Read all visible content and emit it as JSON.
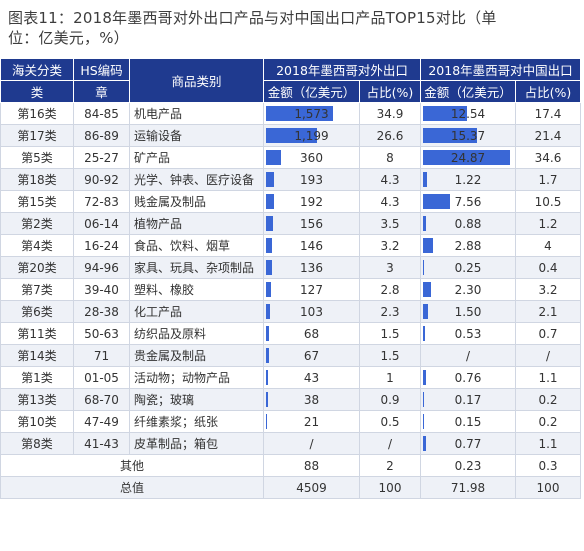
{
  "title_line1": "图表11：2018年墨西哥对外出口产品与对中国出口产品TOP15对比（单",
  "title_line2": "位：亿美元，%）",
  "headers": {
    "col1": "海关分类",
    "col1b": "类",
    "col2": "HS编码",
    "col2b": "章",
    "col3": "商品类别",
    "group1": "2018年墨西哥对外出口",
    "group2": "2018年墨西哥对中国出口",
    "amount": "金额（亿美元）",
    "share": "占比(%)"
  },
  "rows": [
    {
      "cls": "第16类",
      "hs": "84-85",
      "cat": "机电产品",
      "world_amount": "1,573",
      "world_value": 1573,
      "world_share": "34.9",
      "china_amount": "12.54",
      "china_value": 12.54,
      "china_share": "17.4"
    },
    {
      "cls": "第17类",
      "hs": "86-89",
      "cat": "运输设备",
      "world_amount": "1,199",
      "world_value": 1199,
      "world_share": "26.6",
      "china_amount": "15.37",
      "china_value": 15.37,
      "china_share": "21.4"
    },
    {
      "cls": "第5类",
      "hs": "25-27",
      "cat": "矿产品",
      "world_amount": "360",
      "world_value": 360,
      "world_share": "8",
      "china_amount": "24.87",
      "china_value": 24.87,
      "china_share": "34.6"
    },
    {
      "cls": "第18类",
      "hs": "90-92",
      "cat": "光学、钟表、医疗设备",
      "world_amount": "193",
      "world_value": 193,
      "world_share": "4.3",
      "china_amount": "1.22",
      "china_value": 1.22,
      "china_share": "1.7"
    },
    {
      "cls": "第15类",
      "hs": "72-83",
      "cat": "贱金属及制品",
      "world_amount": "192",
      "world_value": 192,
      "world_share": "4.3",
      "china_amount": "7.56",
      "china_value": 7.56,
      "china_share": "10.5"
    },
    {
      "cls": "第2类",
      "hs": "06-14",
      "cat": "植物产品",
      "world_amount": "156",
      "world_value": 156,
      "world_share": "3.5",
      "china_amount": "0.88",
      "china_value": 0.88,
      "china_share": "1.2"
    },
    {
      "cls": "第4类",
      "hs": "16-24",
      "cat": "食品、饮料、烟草",
      "world_amount": "146",
      "world_value": 146,
      "world_share": "3.2",
      "china_amount": "2.88",
      "china_value": 2.88,
      "china_share": "4"
    },
    {
      "cls": "第20类",
      "hs": "94-96",
      "cat": "家具、玩具、杂项制品",
      "world_amount": "136",
      "world_value": 136,
      "world_share": "3",
      "china_amount": "0.25",
      "china_value": 0.25,
      "china_share": "0.4"
    },
    {
      "cls": "第7类",
      "hs": "39-40",
      "cat": "塑料、橡胶",
      "world_amount": "127",
      "world_value": 127,
      "world_share": "2.8",
      "china_amount": "2.30",
      "china_value": 2.3,
      "china_share": "3.2"
    },
    {
      "cls": "第6类",
      "hs": "28-38",
      "cat": "化工产品",
      "world_amount": "103",
      "world_value": 103,
      "world_share": "2.3",
      "china_amount": "1.50",
      "china_value": 1.5,
      "china_share": "2.1"
    },
    {
      "cls": "第11类",
      "hs": "50-63",
      "cat": "纺织品及原料",
      "world_amount": "68",
      "world_value": 68,
      "world_share": "1.5",
      "china_amount": "0.53",
      "china_value": 0.53,
      "china_share": "0.7"
    },
    {
      "cls": "第14类",
      "hs": "71",
      "cat": "贵金属及制品",
      "world_amount": "67",
      "world_value": 67,
      "world_share": "1.5",
      "china_amount": "/",
      "china_value": 0,
      "china_share": "/"
    },
    {
      "cls": "第1类",
      "hs": "01-05",
      "cat": "活动物；动物产品",
      "world_amount": "43",
      "world_value": 43,
      "world_share": "1",
      "china_amount": "0.76",
      "china_value": 0.76,
      "china_share": "1.1"
    },
    {
      "cls": "第13类",
      "hs": "68-70",
      "cat": "陶瓷；玻璃",
      "world_amount": "38",
      "world_value": 38,
      "world_share": "0.9",
      "china_amount": "0.17",
      "china_value": 0.17,
      "china_share": "0.2"
    },
    {
      "cls": "第10类",
      "hs": "47-49",
      "cat": "纤维素浆；纸张",
      "world_amount": "21",
      "world_value": 21,
      "world_share": "0.5",
      "china_amount": "0.15",
      "china_value": 0.15,
      "china_share": "0.2"
    },
    {
      "cls": "第8类",
      "hs": "41-43",
      "cat": "皮革制品；箱包",
      "world_amount": "/",
      "world_value": 0,
      "world_share": "/",
      "china_amount": "0.77",
      "china_value": 0.77,
      "china_share": "1.1"
    }
  ],
  "other": {
    "label": "其他",
    "world_amount": "88",
    "world_share": "2",
    "china_amount": "0.23",
    "china_share": "0.3"
  },
  "total": {
    "label": "总值",
    "world_amount": "4509",
    "world_share": "100",
    "china_amount": "71.98",
    "china_share": "100"
  },
  "colors": {
    "header_bg": "#1f3a8f",
    "bar": "#3a67d6",
    "zebra": "#eef1f7"
  }
}
